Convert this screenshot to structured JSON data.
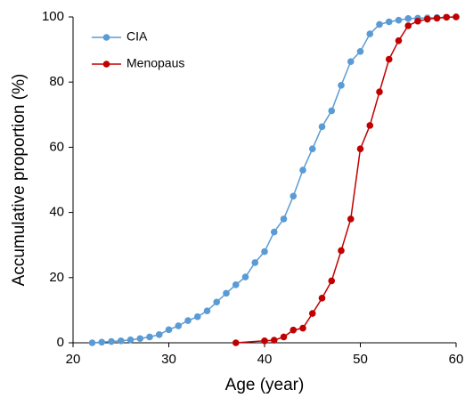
{
  "chart_data": {
    "type": "line",
    "xlabel": "Age (year)",
    "ylabel": "Accumulative proportion (%)",
    "xlim": [
      20,
      60
    ],
    "xticks": [
      20,
      30,
      40,
      50,
      60
    ],
    "ylim": [
      0,
      100
    ],
    "yticks": [
      0,
      20,
      40,
      60,
      80,
      100
    ],
    "grid": false,
    "legend": "upper left",
    "series": [
      {
        "name": "CIA",
        "color": "#5b9bd5",
        "x": [
          22,
          23,
          24,
          25,
          26,
          27,
          28,
          29,
          30,
          31,
          32,
          33,
          34,
          35,
          36,
          37,
          38,
          39,
          40,
          41,
          42,
          43,
          44,
          45,
          46,
          47,
          48,
          49,
          50,
          51,
          52,
          53,
          54,
          55,
          56,
          57,
          58,
          59,
          60
        ],
        "values": [
          0,
          0.2,
          0.4,
          0.6,
          0.9,
          1.3,
          1.8,
          2.5,
          4.0,
          5.2,
          6.8,
          8.0,
          9.8,
          12.5,
          15.2,
          17.8,
          20.2,
          24.6,
          28,
          34,
          38,
          45,
          53,
          59.5,
          66.3,
          71.2,
          79,
          86.3,
          89.4,
          94.8,
          97.7,
          98.5,
          99,
          99.5,
          99.6,
          99.7,
          99.8,
          99.9,
          100
        ]
      },
      {
        "name": "Menopaus",
        "color": "#c00000",
        "x": [
          37,
          40,
          41,
          42,
          43,
          44,
          45,
          46,
          47,
          48,
          49,
          50,
          51,
          52,
          53,
          54,
          55,
          56,
          57,
          58,
          59,
          60
        ],
        "values": [
          0,
          0.6,
          0.8,
          1.8,
          3.9,
          4.5,
          9,
          13.7,
          19,
          28.3,
          38,
          59.5,
          66.7,
          77,
          87,
          92.7,
          97.3,
          98.7,
          99.3,
          99.6,
          99.9,
          100
        ]
      }
    ]
  }
}
